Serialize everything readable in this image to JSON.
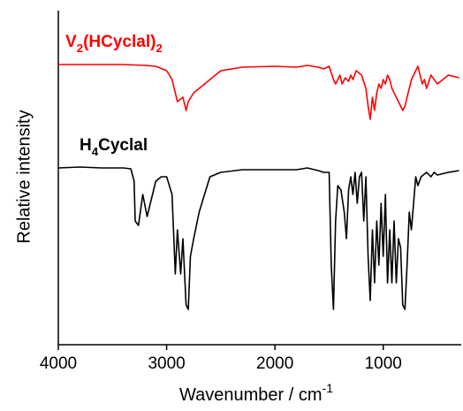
{
  "chart_data": {
    "type": "line",
    "xlabel": [
      {
        "text": "Wavenumber / cm"
      },
      {
        "text": "-1",
        "sup": true
      }
    ],
    "ylabel": "Relative intensity",
    "xlim": [
      4000,
      280
    ],
    "xticks": [
      4000,
      3000,
      2000,
      1000
    ],
    "ylim": [
      0,
      378
    ],
    "series": [
      {
        "name": [
          {
            "text": "V"
          },
          {
            "text": "2",
            "sub": true
          },
          {
            "text": "(HCyclal)"
          },
          {
            "text": "2",
            "sub": true
          }
        ],
        "color": "#ff0000",
        "x": [
          4000,
          3800,
          3600,
          3400,
          3200,
          3100,
          3000,
          2950,
          2900,
          2850,
          2820,
          2800,
          2750,
          2700,
          2600,
          2500,
          2300,
          2000,
          1800,
          1700,
          1600,
          1550,
          1500,
          1460,
          1440,
          1400,
          1380,
          1350,
          1320,
          1300,
          1280,
          1250,
          1200,
          1160,
          1140,
          1120,
          1100,
          1080,
          1060,
          1040,
          1020,
          1000,
          980,
          960,
          940,
          920,
          900,
          880,
          860,
          840,
          820,
          800,
          780,
          760,
          740,
          700,
          680,
          660,
          640,
          620,
          600,
          560,
          530,
          500,
          400,
          300
        ],
        "values": [
          317,
          317,
          317,
          317,
          316,
          315,
          310,
          300,
          275,
          280,
          265,
          275,
          285,
          290,
          300,
          310,
          314,
          315,
          314,
          316,
          314,
          312,
          315,
          300,
          295,
          305,
          295,
          302,
          298,
          305,
          300,
          310,
          305,
          290,
          270,
          255,
          280,
          265,
          285,
          295,
          290,
          300,
          295,
          305,
          300,
          290,
          285,
          280,
          275,
          270,
          265,
          270,
          280,
          290,
          300,
          310,
          315,
          305,
          295,
          300,
          290,
          305,
          300,
          295,
          305,
          302
        ]
      },
      {
        "name": [
          {
            "text": "H"
          },
          {
            "text": "4",
            "sub": true
          },
          {
            "text": "Cyclal"
          }
        ],
        "color": "#000000",
        "x": [
          4000,
          3800,
          3600,
          3400,
          3330,
          3300,
          3290,
          3260,
          3220,
          3180,
          3100,
          3050,
          3000,
          2950,
          2920,
          2900,
          2870,
          2850,
          2820,
          2800,
          2780,
          2750,
          2700,
          2650,
          2600,
          2500,
          2300,
          2000,
          1800,
          1700,
          1600,
          1550,
          1500,
          1480,
          1460,
          1440,
          1420,
          1390,
          1360,
          1340,
          1320,
          1300,
          1280,
          1260,
          1240,
          1220,
          1200,
          1180,
          1160,
          1140,
          1120,
          1100,
          1080,
          1060,
          1040,
          1020,
          1000,
          980,
          960,
          940,
          920,
          900,
          880,
          860,
          840,
          820,
          800,
          780,
          760,
          740,
          720,
          700,
          680,
          650,
          600,
          560,
          530,
          500,
          400,
          300
        ],
        "values": [
          200,
          201,
          200,
          200,
          199,
          185,
          140,
          135,
          170,
          145,
          185,
          190,
          190,
          170,
          80,
          130,
          80,
          120,
          45,
          40,
          100,
          120,
          150,
          170,
          190,
          195,
          198,
          198,
          198,
          200,
          197,
          195,
          195,
          90,
          40,
          140,
          180,
          175,
          150,
          120,
          175,
          190,
          170,
          195,
          160,
          190,
          195,
          140,
          190,
          100,
          50,
          130,
          70,
          140,
          90,
          160,
          100,
          170,
          70,
          130,
          70,
          140,
          70,
          120,
          110,
          45,
          40,
          90,
          150,
          130,
          160,
          190,
          180,
          190,
          195,
          190,
          195,
          192,
          195,
          197
        ]
      }
    ]
  }
}
